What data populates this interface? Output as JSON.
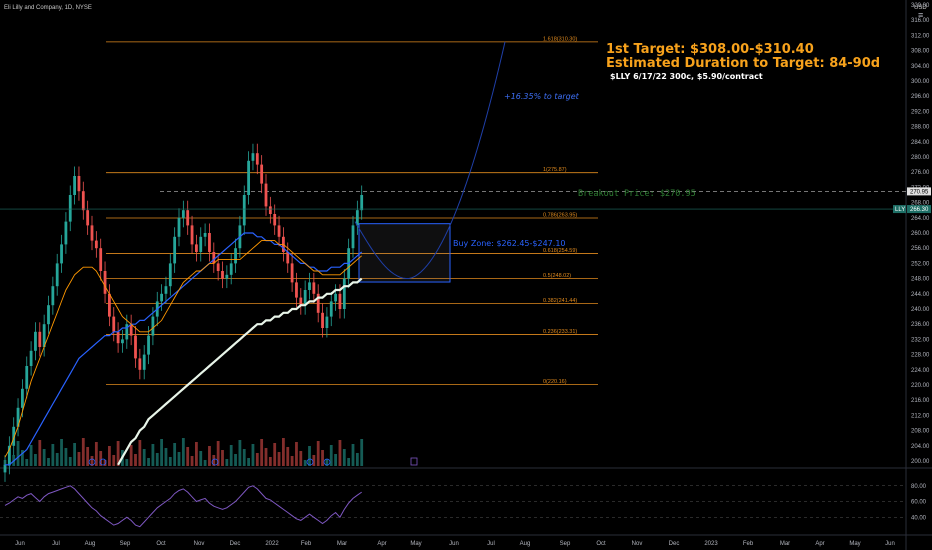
{
  "header": {
    "symbol_title": "Eli Lilly and Company, 1D, NYSE",
    "currency": "USD"
  },
  "annotations": {
    "target_line1": "1st Target: $308.00-$310.40",
    "target_line2": "Estimated Duration to Target: 84-90d",
    "option_line": "$LLY 6/17/22 300c, $5.90/contract",
    "pct_to_target": "+16.35% to target",
    "breakout": "Breakout Price: $270.95",
    "buy_zone": "Buy Zone: $262.45-$247.10"
  },
  "colors": {
    "background": "#000000",
    "fib": "#e08a1e",
    "headline": "#f7a21c",
    "candle_up": "#26a69a",
    "candle_down": "#ef5350",
    "ema_orange": "#ff9800",
    "ma_blue": "#2962ff",
    "ma_white": "#e8f5e9",
    "buy_zone": "#2962ff",
    "breakout": "#4caf50",
    "rsi": "#7e57c2"
  },
  "chart_data": {
    "type": "candlestick",
    "price_axis": {
      "ticks": [
        200,
        204,
        208,
        212,
        216,
        220,
        224,
        228,
        232,
        236,
        240,
        244,
        248,
        252,
        256,
        260,
        264,
        268,
        272,
        276,
        280,
        284,
        288,
        292,
        296,
        300,
        304,
        308,
        312,
        316,
        320
      ],
      "tick_labels": [
        "200.00",
        "204.00",
        "208.00",
        "212.00",
        "216.00",
        "220.00",
        "224.00",
        "228.00",
        "232.00",
        "236.00",
        "240.00",
        "244.00",
        "248.00",
        "252.00",
        "256.00",
        "260.00",
        "264.00",
        "268.00",
        "272.00",
        "276.00",
        "280.00",
        "284.00",
        "288.00",
        "292.00",
        "296.00",
        "300.00",
        "304.00",
        "308.00",
        "312.00",
        "316.00",
        "320.00"
      ],
      "range": [
        198.5,
        323.5
      ]
    },
    "time_axis": {
      "labels": [
        "Jun",
        "Jul",
        "Aug",
        "Sep",
        "Oct",
        "Nov",
        "Dec",
        "2022",
        "Feb",
        "Mar",
        "Apr",
        "May",
        "Jun",
        "Jul",
        "Aug",
        "Sep",
        "Oct",
        "Nov",
        "Dec",
        "2023",
        "Feb",
        "Mar",
        "Apr",
        "May",
        "Jun"
      ]
    },
    "fib_levels": [
      {
        "label": "1.618(310.30)",
        "value": 310.3
      },
      {
        "label": "1(275.87)",
        "value": 275.87
      },
      {
        "label": "0.786(263.95)",
        "value": 263.95
      },
      {
        "label": "0.618(254.59)",
        "value": 254.59
      },
      {
        "label": "0.5(248.02)",
        "value": 248.02
      },
      {
        "label": "0.382(241.44)",
        "value": 241.44
      },
      {
        "label": "0.236(233.31)",
        "value": 233.31
      },
      {
        "label": "0(220.16)",
        "value": 220.16
      }
    ],
    "price_tags": {
      "breakout": {
        "label": "270.95",
        "value": 270.95
      },
      "last": {
        "label": "266.30",
        "symbol": "LLY",
        "value": 266.3
      }
    },
    "breakout_price": 270.95,
    "buy_zone": {
      "high": 262.45,
      "low": 247.1
    },
    "target": 310.3,
    "closes": [
      199,
      204,
      209,
      214,
      219,
      225,
      229,
      234,
      230,
      236,
      241,
      246,
      252,
      257,
      263,
      270,
      275,
      271,
      266,
      262,
      258,
      256,
      250,
      244,
      238,
      234,
      231,
      232,
      236,
      233,
      227,
      224,
      228,
      233,
      238,
      242,
      244,
      246,
      252,
      259,
      264,
      266,
      262,
      257,
      255,
      259,
      260,
      255,
      252,
      250,
      248,
      249,
      252,
      256,
      262,
      270,
      279,
      281,
      278,
      273,
      267,
      265,
      262,
      259,
      255,
      252,
      247,
      243,
      241,
      245,
      247,
      244,
      239,
      235,
      238,
      242,
      244,
      240,
      248,
      256,
      262,
      266,
      270
    ],
    "ema50": [
      201,
      203,
      206,
      209,
      213,
      217,
      221,
      224,
      227,
      230,
      233,
      236,
      239,
      242,
      245,
      247,
      249,
      250,
      251,
      251,
      251,
      250,
      248,
      246,
      244,
      242,
      240,
      238,
      237,
      236,
      235,
      234,
      234,
      234,
      235,
      236,
      237,
      239,
      241,
      243,
      245,
      247,
      248,
      249,
      250,
      250,
      251,
      252,
      252,
      253,
      253,
      253,
      253,
      253,
      253,
      254,
      255,
      256,
      257,
      258,
      258,
      258,
      258,
      257,
      257,
      256,
      255,
      254,
      253,
      252,
      251,
      250,
      250,
      249,
      249,
      249,
      249,
      249,
      250,
      251,
      252,
      253,
      254
    ],
    "ma_blue": [
      199,
      199,
      200,
      201,
      202,
      203,
      205,
      207,
      209,
      211,
      213,
      215,
      217,
      219,
      221,
      223,
      225,
      227,
      228,
      229,
      230,
      231,
      232,
      233,
      233,
      234,
      234,
      235,
      235,
      236,
      236,
      237,
      237,
      238,
      239,
      240,
      241,
      242,
      243,
      244,
      245,
      246,
      247,
      248,
      249,
      250,
      251,
      252,
      253,
      254,
      255,
      256,
      257,
      258,
      259,
      260,
      260,
      260,
      259,
      259,
      258,
      258,
      257,
      257,
      256,
      255,
      254,
      253,
      252,
      252,
      251,
      251,
      250,
      250,
      250,
      251,
      251,
      251,
      252,
      252,
      253,
      254,
      255
    ],
    "ma_white": [
      null,
      null,
      null,
      null,
      null,
      null,
      null,
      null,
      null,
      null,
      null,
      null,
      null,
      null,
      null,
      null,
      null,
      null,
      null,
      null,
      null,
      null,
      null,
      null,
      null,
      null,
      199,
      201,
      203,
      205,
      206,
      208,
      209,
      211,
      212,
      213,
      214,
      215,
      216,
      217,
      218,
      219,
      220,
      221,
      222,
      223,
      224,
      225,
      226,
      227,
      228,
      229,
      230,
      231,
      232,
      233,
      234,
      235,
      236,
      236,
      237,
      237,
      238,
      238,
      239,
      239,
      240,
      240,
      241,
      241,
      242,
      242,
      243,
      243,
      244,
      244,
      245,
      245,
      246,
      246,
      247,
      247,
      248
    ],
    "rsi": {
      "ticks": [
        80,
        60,
        40
      ],
      "tick_labels": [
        "80.00",
        "60.00",
        "40.00"
      ],
      "values": [
        55,
        58,
        62,
        66,
        64,
        68,
        70,
        65,
        60,
        66,
        70,
        72,
        74,
        76,
        78,
        80,
        76,
        70,
        64,
        58,
        52,
        48,
        42,
        38,
        34,
        30,
        32,
        36,
        40,
        36,
        30,
        28,
        34,
        40,
        46,
        52,
        56,
        60,
        64,
        70,
        74,
        76,
        72,
        66,
        60,
        62,
        64,
        58,
        54,
        52,
        50,
        52,
        56,
        60,
        66,
        72,
        78,
        80,
        76,
        70,
        64,
        62,
        58,
        54,
        50,
        46,
        42,
        38,
        36,
        40,
        44,
        40,
        36,
        32,
        36,
        42,
        46,
        40,
        50,
        58,
        64,
        68,
        72
      ]
    }
  }
}
